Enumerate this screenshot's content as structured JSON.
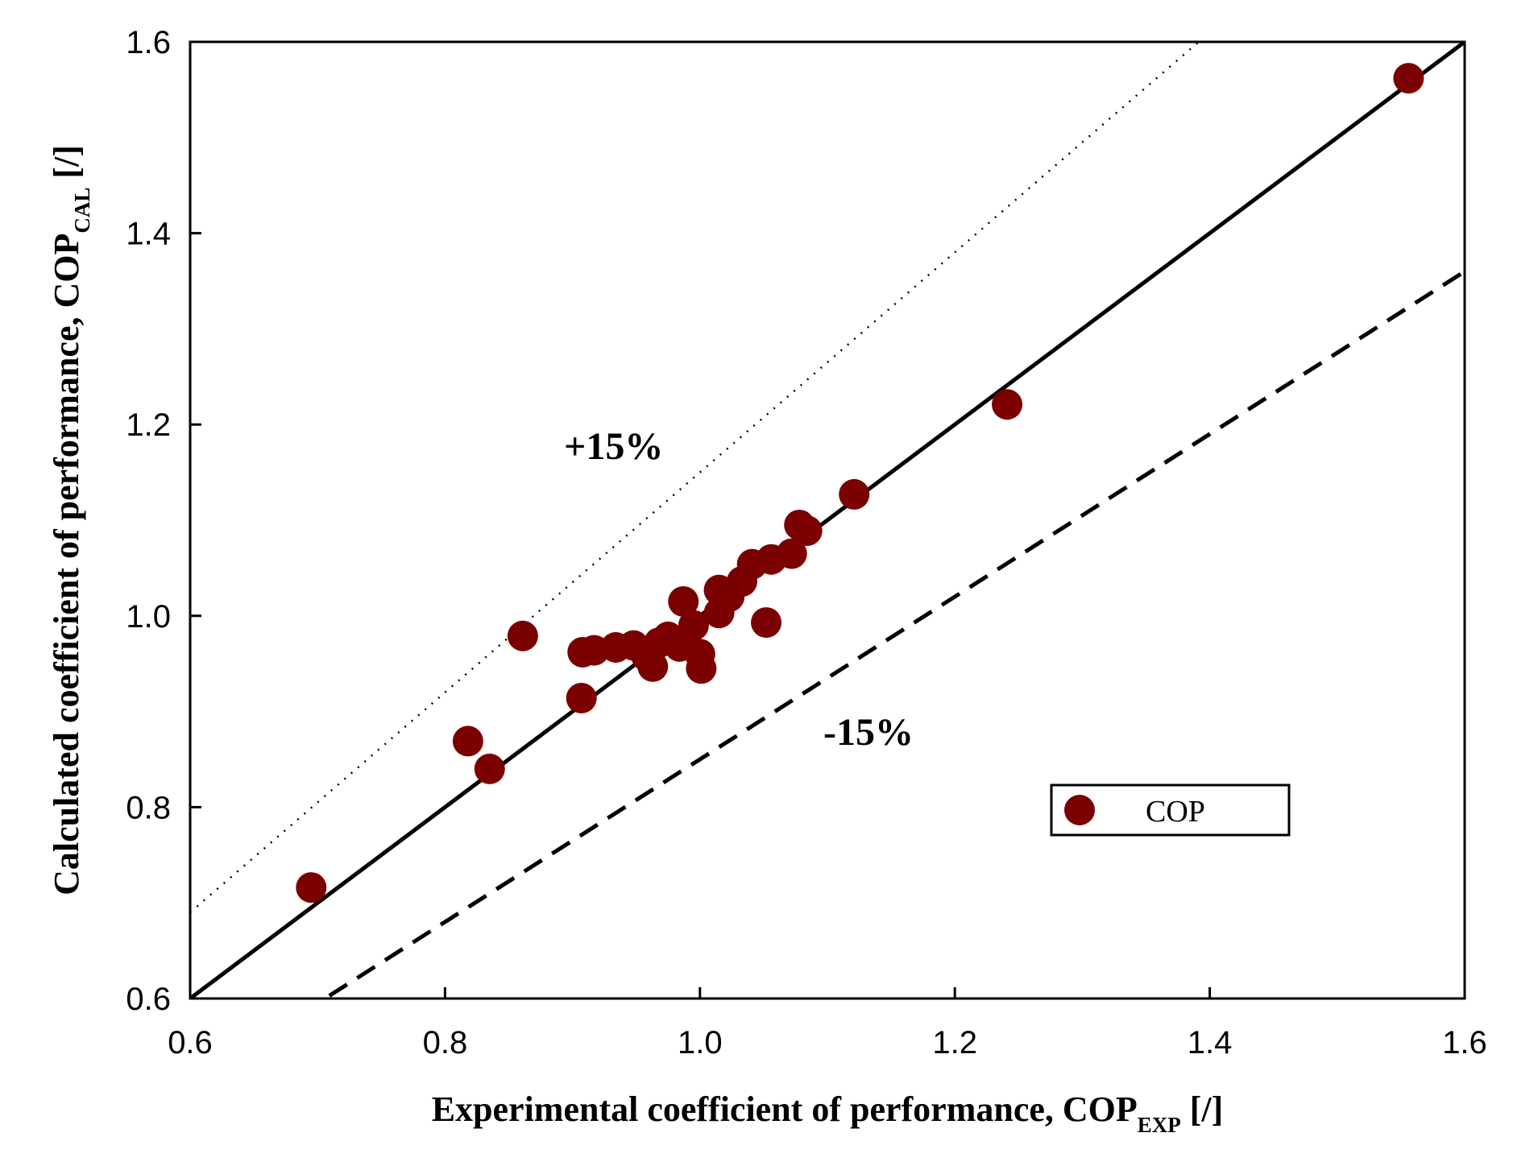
{
  "chart_data": {
    "type": "scatter",
    "title": "",
    "xlabel": {
      "main": "Experimental coefficient of performance, COP",
      "subscript": "EXP",
      "unit": " [/]"
    },
    "ylabel": {
      "main": "Calculated coefficient of performance, COP",
      "subscript": "CAL",
      "unit": " [/]"
    },
    "xlim": [
      0.6,
      1.6
    ],
    "ylim": [
      0.6,
      1.6
    ],
    "xticks": [
      "0.6",
      "0.8",
      "1.0",
      "1.2",
      "1.4",
      "1.6"
    ],
    "yticks": [
      "0.6",
      "0.8",
      "1.0",
      "1.2",
      "1.4",
      "1.6"
    ],
    "grid": false,
    "legend_position": "lower-right",
    "series": [
      {
        "name": "COP",
        "color": "#7b0000",
        "x": [
          0.695,
          0.818,
          0.835,
          0.861,
          0.907,
          0.908,
          0.917,
          0.934,
          0.948,
          0.958,
          0.963,
          0.968,
          0.975,
          0.984,
          0.987,
          0.995,
          1.0,
          1.001,
          1.015,
          1.015,
          1.023,
          1.033,
          1.041,
          1.052,
          1.056,
          1.072,
          1.078,
          1.084,
          1.121,
          1.241,
          1.556
        ],
        "y": [
          0.716,
          0.869,
          0.84,
          0.979,
          0.914,
          0.962,
          0.964,
          0.967,
          0.969,
          0.958,
          0.947,
          0.972,
          0.978,
          0.968,
          1.015,
          0.99,
          0.96,
          0.945,
          1.003,
          1.027,
          1.02,
          1.036,
          1.054,
          0.993,
          1.059,
          1.065,
          1.095,
          1.089,
          1.127,
          1.221,
          1.562
        ]
      }
    ],
    "reference_lines": [
      {
        "name": "1:1 line",
        "slope": 1.0,
        "style": "solid"
      },
      {
        "name": "+15%",
        "slope": 1.15,
        "style": "dotted"
      },
      {
        "name": "-15%",
        "slope": 0.85,
        "style": "dashed"
      }
    ],
    "annotations": [
      "+15%",
      "-15%"
    ]
  }
}
